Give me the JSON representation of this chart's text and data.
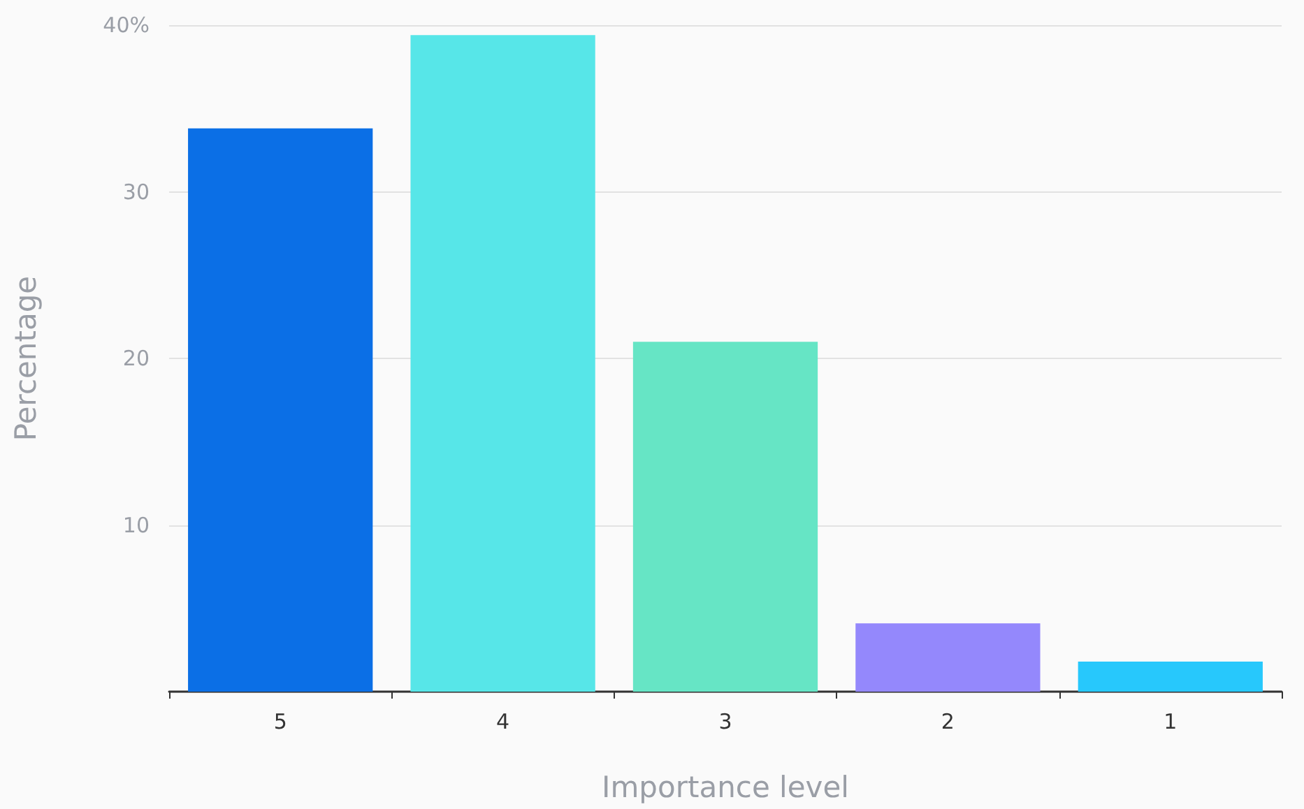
{
  "chart_data": {
    "type": "bar",
    "xlabel": "Importance level",
    "ylabel": "Percentage",
    "categories": [
      "5",
      "4",
      "3",
      "2",
      "1"
    ],
    "values": [
      33.8,
      39.4,
      21.0,
      4.1,
      1.8
    ],
    "colors": [
      "#0b6fe6",
      "#57e6e8",
      "#66e5c5",
      "#9488fc",
      "#27c8fc"
    ],
    "ylim": [
      0,
      40
    ],
    "yticks": [
      {
        "value": 0,
        "label": null
      },
      10,
      20,
      30,
      {
        "value": 40,
        "label": "40%"
      }
    ],
    "grid": "y"
  }
}
